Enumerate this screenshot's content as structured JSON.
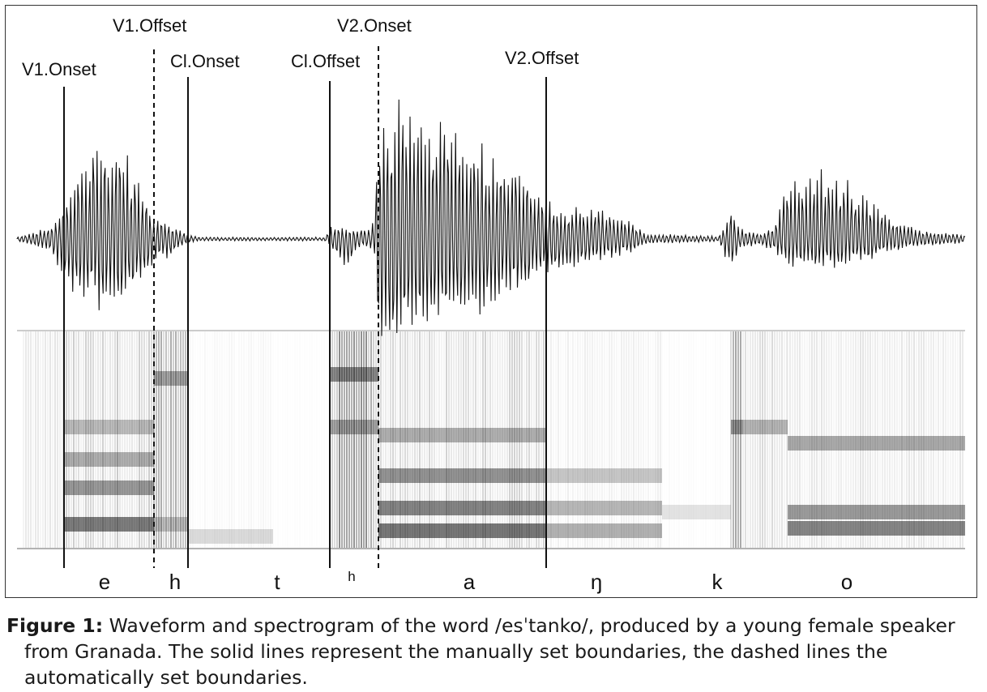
{
  "figure": {
    "boundaries": [
      {
        "label": "V1.Onset",
        "style": "solid"
      },
      {
        "label": "V1.Offset",
        "style": "dashed"
      },
      {
        "label": "Cl.Onset",
        "style": "solid"
      },
      {
        "label": "Cl.Offset",
        "style": "solid"
      },
      {
        "label": "V2.Onset",
        "style": "dashed"
      },
      {
        "label": "V2.Offset",
        "style": "solid"
      }
    ],
    "segments": [
      "e",
      "h",
      "t",
      "h",
      "a",
      "ŋ",
      "k",
      "o"
    ]
  },
  "caption": {
    "label": "Figure 1:",
    "line1": " Waveform and spectrogram of the word /esˈtanko/, produced by a young female speaker",
    "line2": "from Granada. The solid lines represent the manually set boundaries, the dashed lines the",
    "line3": "automatically set boundaries."
  }
}
